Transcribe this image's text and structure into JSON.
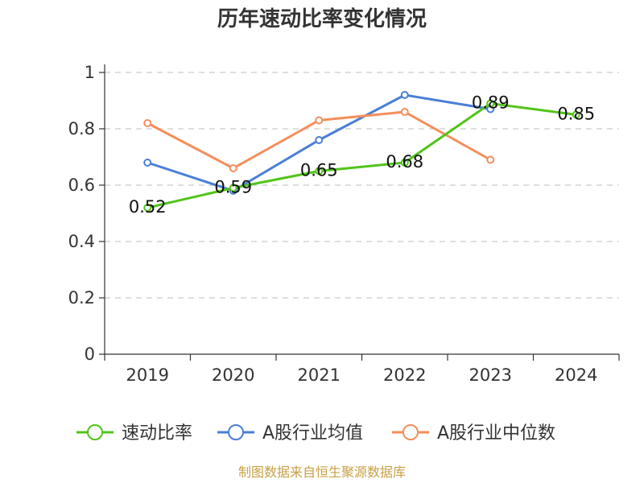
{
  "chart_data": {
    "type": "line",
    "title": "历年速动比率变化情况",
    "categories": [
      "2019",
      "2020",
      "2021",
      "2022",
      "2023",
      "2024"
    ],
    "ylim": [
      0,
      1
    ],
    "yticks": [
      "0",
      "0.2",
      "0.4",
      "0.6",
      "0.8",
      "1"
    ],
    "ytick_values": [
      0,
      0.2,
      0.4,
      0.6,
      0.8,
      1
    ],
    "grid": true,
    "legend_position": "bottom",
    "series": [
      {
        "name": "速动比率",
        "color": "#52c41a",
        "values": [
          0.52,
          0.59,
          0.65,
          0.68,
          0.89,
          0.85
        ],
        "labels": [
          "0.52",
          "0.59",
          "0.65",
          "0.68",
          "0.89",
          "0.85"
        ]
      },
      {
        "name": "A股行业均值",
        "color": "#4a7fd6",
        "values": [
          0.68,
          0.58,
          0.76,
          0.92,
          0.87,
          null
        ]
      },
      {
        "name": "A股行业中位数",
        "color": "#f58d5b",
        "values": [
          0.82,
          0.66,
          0.83,
          0.86,
          0.69,
          null
        ]
      }
    ],
    "source": "制图数据来自恒生聚源数据库"
  }
}
